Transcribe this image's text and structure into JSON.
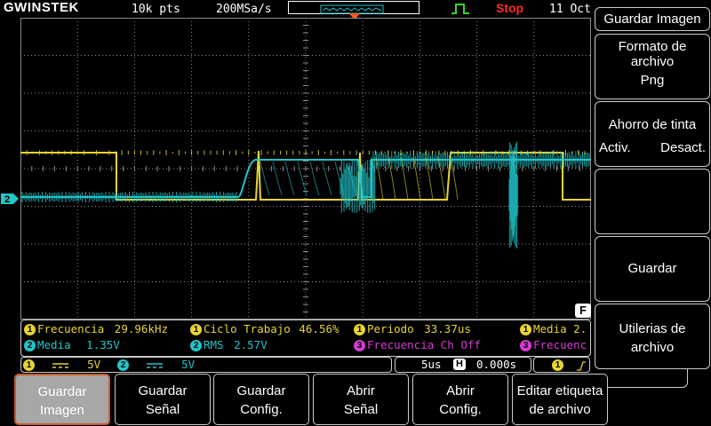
{
  "topbar": {
    "brand": "GWINSTEK",
    "record_length": "10k pts",
    "sample_rate": "200MSa/s",
    "run_state": "Stop",
    "date": "11 Oct"
  },
  "channels": {
    "ch1": {
      "number": "1",
      "coupling_icon": "dc-coupling-icon",
      "scale": "5V",
      "color": "#e8d431"
    },
    "ch2": {
      "number": "2",
      "coupling_icon": "dc-coupling-icon",
      "scale": "5V",
      "color": "#22c5c9"
    },
    "ch3": {
      "number": "3",
      "color": "#d53bd5"
    }
  },
  "markers": {
    "ch2_marker": "2",
    "f_marker": "F"
  },
  "measurements": {
    "row1": [
      {
        "ch": "1",
        "label": "Frecuencia",
        "value": "29.96kHz"
      },
      {
        "ch": "1",
        "label": "Ciclo Trabajo",
        "value": "46.56%"
      },
      {
        "ch": "1",
        "label": "Periodo",
        "value": "33.37us"
      },
      {
        "ch": "1",
        "label": "Media",
        "value": "2."
      }
    ],
    "row2": [
      {
        "ch": "2",
        "label": "Media",
        "value": "1.35V"
      },
      {
        "ch": "2",
        "label": "RMS",
        "value": "2.57V"
      },
      {
        "ch": "3",
        "label": "Frecuencia Ch Off",
        "value": ""
      },
      {
        "ch": "3",
        "label": "Frecuenc",
        "value": ""
      }
    ]
  },
  "timebase": {
    "scale": "5us",
    "h_label": "H",
    "offset": "0.000s",
    "trigger_ch": "1"
  },
  "side_menu": {
    "title": "Guardar Imagen",
    "format_label": "Formato de archivo",
    "format_value": "Png",
    "ink_label": "Ahorro de tinta",
    "ink_on": "Activ.",
    "ink_off": "Desact.",
    "save": "Guardar",
    "utilities": "Utilerias de archivo"
  },
  "bottom_menu": [
    {
      "line1": "Guardar",
      "line2": "Imagen"
    },
    {
      "line1": "Guardar",
      "line2": "Señal"
    },
    {
      "line1": "Guardar",
      "line2": "Config."
    },
    {
      "line1": "Abrir",
      "line2": "Señal"
    },
    {
      "line1": "Abrir",
      "line2": "Config."
    },
    {
      "line1": "Editar etiqueta",
      "line2": "de archivo"
    }
  ],
  "colors": {
    "ch1": "#e8d431",
    "ch2": "#22c5c9",
    "ch3": "#d53bd5",
    "stop": "#ff2a2a",
    "trigger": "#ff5a1f",
    "run_icon": "#35d435"
  }
}
